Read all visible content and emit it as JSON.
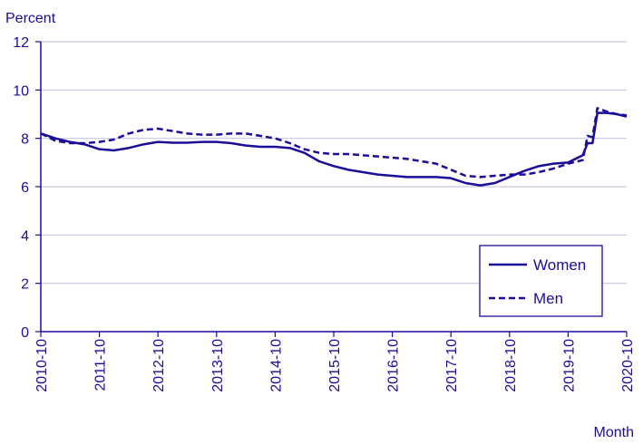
{
  "chart_data": {
    "type": "line",
    "title": "",
    "ylabel": "Percent",
    "xlabel": "Month",
    "ylim": [
      0,
      12
    ],
    "yticks": [
      0,
      2,
      4,
      6,
      8,
      10,
      12
    ],
    "xlim": [
      "2010-10",
      "2020-10"
    ],
    "xticks": [
      "2010-10",
      "2011-10",
      "2012-10",
      "2013-10",
      "2014-10",
      "2015-10",
      "2016-10",
      "2017-10",
      "2018-10",
      "2019-10",
      "2020-10"
    ],
    "grid": true,
    "legend": "bottom-right",
    "colors": {
      "text": "#1a0d99",
      "series": "#1a0d99",
      "grid": "#c6c6e0",
      "axis": "#1a0d99"
    },
    "series": [
      {
        "name": "Women",
        "style": "solid",
        "points": [
          [
            "2010-10",
            8.2
          ],
          [
            "2011-01",
            8.0
          ],
          [
            "2011-04",
            7.85
          ],
          [
            "2011-07",
            7.75
          ],
          [
            "2011-10",
            7.55
          ],
          [
            "2012-01",
            7.5
          ],
          [
            "2012-04",
            7.6
          ],
          [
            "2012-07",
            7.75
          ],
          [
            "2012-10",
            7.85
          ],
          [
            "2013-01",
            7.82
          ],
          [
            "2013-04",
            7.82
          ],
          [
            "2013-07",
            7.85
          ],
          [
            "2013-10",
            7.85
          ],
          [
            "2014-01",
            7.8
          ],
          [
            "2014-04",
            7.7
          ],
          [
            "2014-07",
            7.65
          ],
          [
            "2014-10",
            7.65
          ],
          [
            "2015-01",
            7.6
          ],
          [
            "2015-04",
            7.4
          ],
          [
            "2015-07",
            7.05
          ],
          [
            "2015-10",
            6.85
          ],
          [
            "2016-01",
            6.7
          ],
          [
            "2016-04",
            6.6
          ],
          [
            "2016-07",
            6.5
          ],
          [
            "2016-10",
            6.45
          ],
          [
            "2017-01",
            6.4
          ],
          [
            "2017-04",
            6.4
          ],
          [
            "2017-07",
            6.4
          ],
          [
            "2017-10",
            6.35
          ],
          [
            "2018-01",
            6.15
          ],
          [
            "2018-04",
            6.05
          ],
          [
            "2018-07",
            6.15
          ],
          [
            "2018-10",
            6.4
          ],
          [
            "2019-01",
            6.65
          ],
          [
            "2019-04",
            6.85
          ],
          [
            "2019-07",
            6.95
          ],
          [
            "2019-10",
            7.0
          ],
          [
            "2020-01",
            7.3
          ],
          [
            "2020-02",
            7.8
          ],
          [
            "2020-03",
            7.8
          ],
          [
            "2020-04",
            9.05
          ],
          [
            "2020-06",
            9.05
          ],
          [
            "2020-08",
            9.0
          ],
          [
            "2020-10",
            8.9
          ]
        ]
      },
      {
        "name": "Men",
        "style": "dashed",
        "points": [
          [
            "2010-10",
            8.2
          ],
          [
            "2011-01",
            7.9
          ],
          [
            "2011-04",
            7.8
          ],
          [
            "2011-07",
            7.8
          ],
          [
            "2011-10",
            7.85
          ],
          [
            "2012-01",
            7.95
          ],
          [
            "2012-04",
            8.2
          ],
          [
            "2012-07",
            8.35
          ],
          [
            "2012-10",
            8.4
          ],
          [
            "2013-01",
            8.3
          ],
          [
            "2013-04",
            8.2
          ],
          [
            "2013-07",
            8.15
          ],
          [
            "2013-10",
            8.15
          ],
          [
            "2014-01",
            8.2
          ],
          [
            "2014-04",
            8.2
          ],
          [
            "2014-07",
            8.1
          ],
          [
            "2014-10",
            8.0
          ],
          [
            "2015-01",
            7.8
          ],
          [
            "2015-04",
            7.55
          ],
          [
            "2015-07",
            7.4
          ],
          [
            "2015-10",
            7.35
          ],
          [
            "2016-01",
            7.35
          ],
          [
            "2016-04",
            7.3
          ],
          [
            "2016-07",
            7.25
          ],
          [
            "2016-10",
            7.2
          ],
          [
            "2017-01",
            7.15
          ],
          [
            "2017-04",
            7.05
          ],
          [
            "2017-07",
            6.95
          ],
          [
            "2017-10",
            6.7
          ],
          [
            "2018-01",
            6.45
          ],
          [
            "2018-04",
            6.4
          ],
          [
            "2018-07",
            6.45
          ],
          [
            "2018-10",
            6.5
          ],
          [
            "2019-01",
            6.5
          ],
          [
            "2019-04",
            6.6
          ],
          [
            "2019-07",
            6.75
          ],
          [
            "2019-10",
            6.95
          ],
          [
            "2020-01",
            7.1
          ],
          [
            "2020-02",
            8.1
          ],
          [
            "2020-03",
            8.05
          ],
          [
            "2020-04",
            9.25
          ],
          [
            "2020-06",
            9.1
          ],
          [
            "2020-08",
            9.0
          ],
          [
            "2020-10",
            8.95
          ]
        ]
      }
    ]
  }
}
